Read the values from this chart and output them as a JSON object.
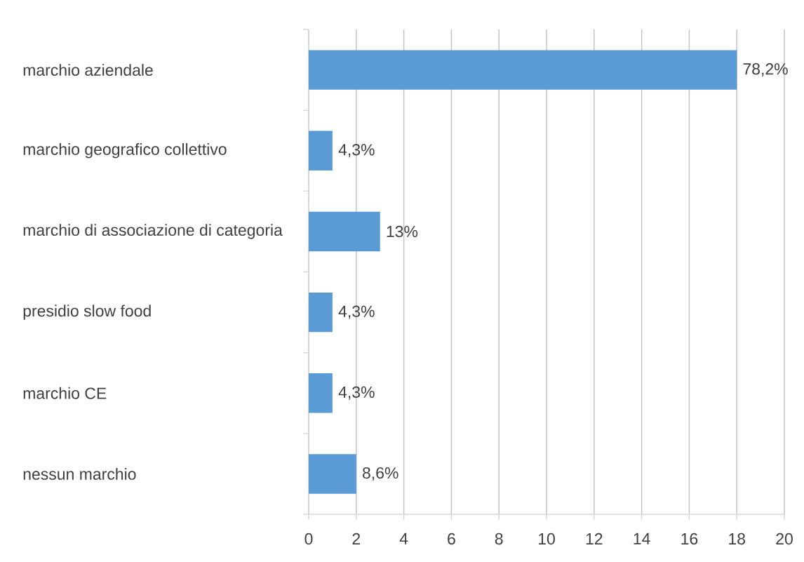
{
  "chart_data": {
    "type": "bar",
    "orientation": "horizontal",
    "categories": [
      "marchio aziendale",
      "marchio geografico collettivo",
      "marchio di associazione di categoria",
      "presidio slow food",
      "marchio CE",
      "nessun marchio"
    ],
    "values": [
      18,
      1,
      3,
      1,
      1,
      2
    ],
    "annotations": [
      {
        "text": "78,2%",
        "x": 18,
        "y": "marchio aziendale"
      },
      {
        "text": "4,3%",
        "x": 1,
        "y": "marchio geografico collettivo"
      },
      {
        "text": "13%",
        "x": 3,
        "y": "marchio di associazione di categoria"
      },
      {
        "text": "4,3%",
        "x": 1,
        "y": "presidio slow food"
      },
      {
        "text": "4,3%",
        "x": 1,
        "y": "marchio CE"
      },
      {
        "text": "8,6%",
        "x": 2,
        "y": "nessun marchio"
      }
    ],
    "color": "#5b9bd5",
    "xlim": [
      0,
      20
    ],
    "xticks": [
      0,
      2,
      4,
      6,
      8,
      10,
      12,
      14,
      16,
      18,
      20
    ],
    "grid": "x"
  }
}
